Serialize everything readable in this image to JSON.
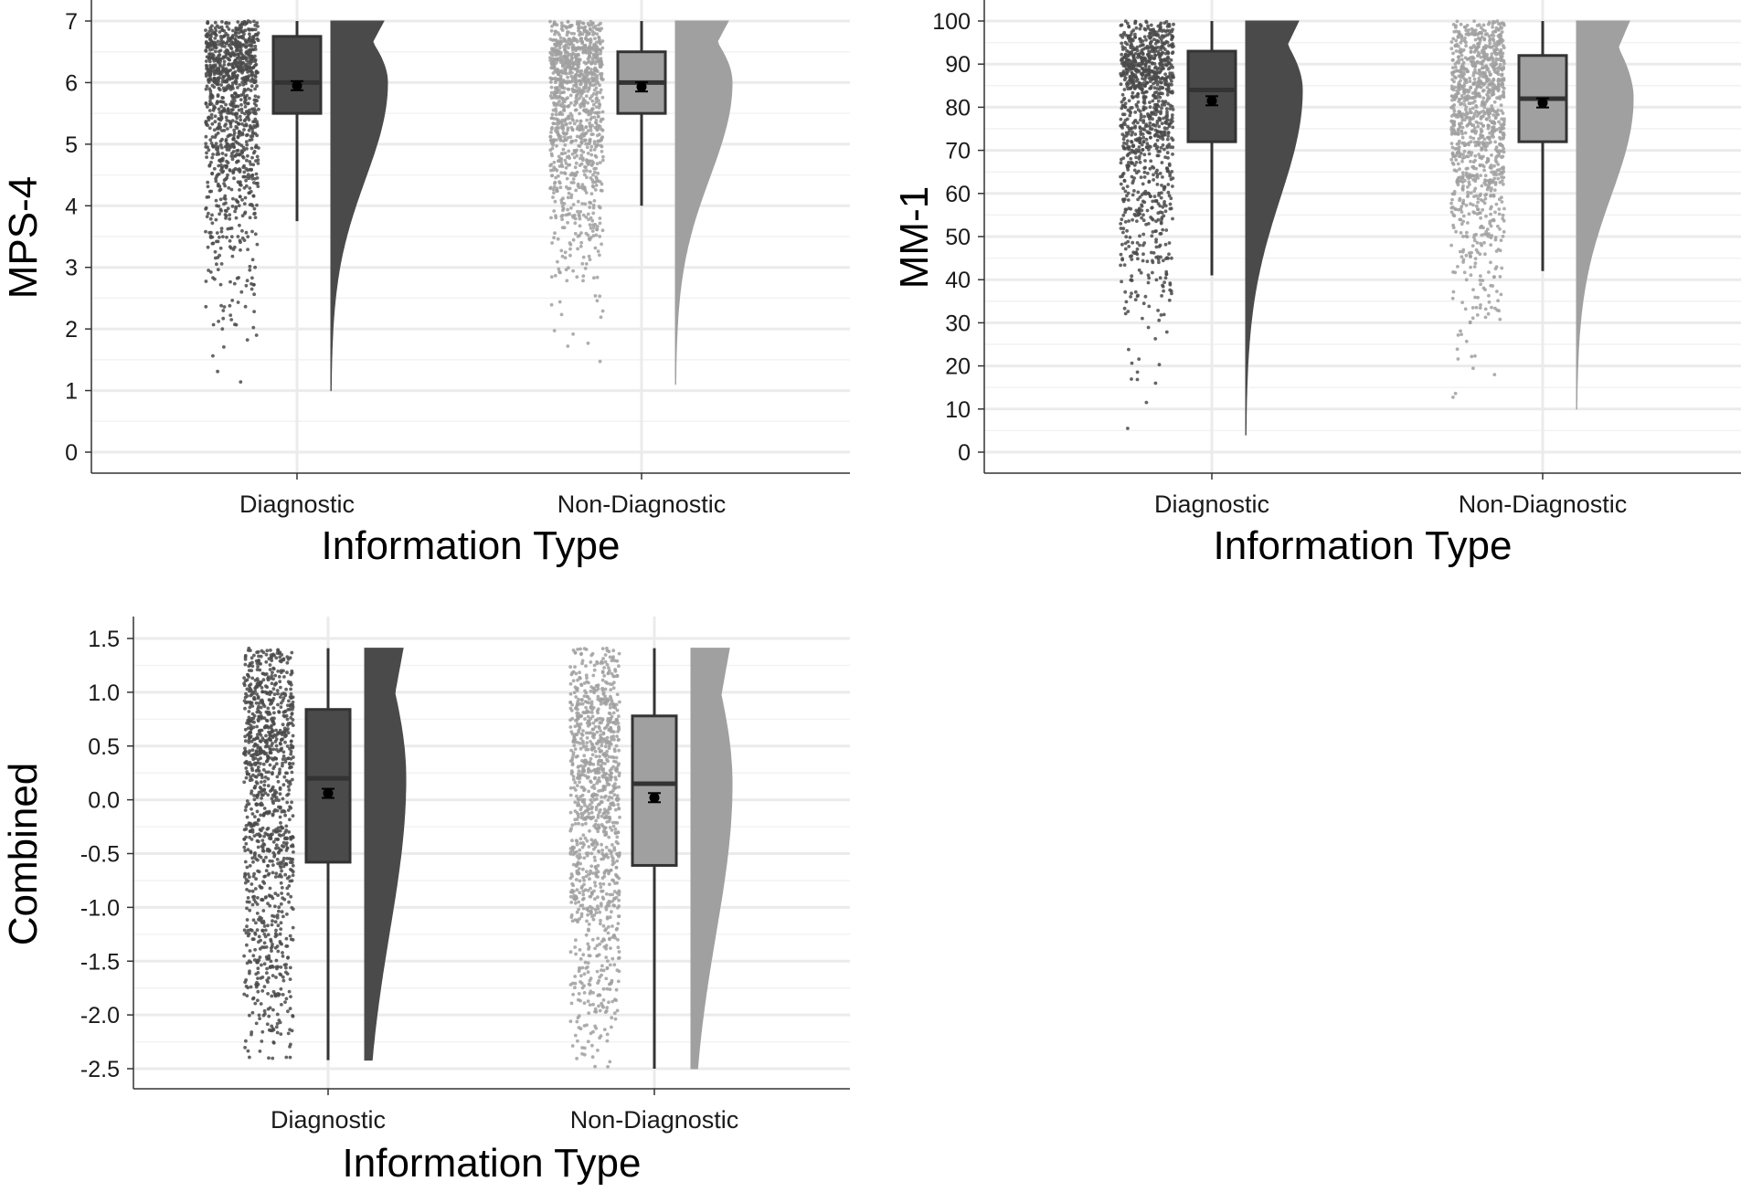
{
  "chart_data": [
    {
      "type": "raincloud",
      "xlabel": "Information Type",
      "ylabel": "MPS-4",
      "categories": [
        "Diagnostic",
        "Non-Diagnostic"
      ],
      "yticks": [
        0,
        1,
        2,
        3,
        4,
        5,
        6,
        7
      ],
      "ylim": [
        -0.3,
        7.1
      ],
      "grid": true,
      "colors": [
        "#4a4a4a",
        "#a0a0a0"
      ],
      "series": [
        {
          "category": "Diagnostic",
          "color": "#4a4a4a",
          "box": {
            "q1": 5.5,
            "median": 6.0,
            "q3": 6.75,
            "whisker_low": 3.75,
            "whisker_high": 7.0
          },
          "mean": 5.95,
          "raw_min": 1.0,
          "raw_max": 7.0
        },
        {
          "category": "Non-Diagnostic",
          "color": "#a0a0a0",
          "box": {
            "q1": 5.5,
            "median": 6.0,
            "q3": 6.5,
            "whisker_low": 4.0,
            "whisker_high": 7.0
          },
          "mean": 5.93,
          "raw_min": 1.1,
          "raw_max": 7.0
        }
      ]
    },
    {
      "type": "raincloud",
      "xlabel": "Information Type",
      "ylabel": "MM-1",
      "categories": [
        "Diagnostic",
        "Non-Diagnostic"
      ],
      "yticks": [
        0,
        10,
        20,
        30,
        40,
        50,
        60,
        70,
        80,
        90,
        100
      ],
      "ylim": [
        -5,
        102
      ],
      "grid": true,
      "colors": [
        "#4a4a4a",
        "#a0a0a0"
      ],
      "series": [
        {
          "category": "Diagnostic",
          "color": "#4a4a4a",
          "box": {
            "q1": 72,
            "median": 84,
            "q3": 93,
            "whisker_low": 41,
            "whisker_high": 100
          },
          "mean": 81.5,
          "raw_min": 4,
          "raw_max": 100
        },
        {
          "category": "Non-Diagnostic",
          "color": "#a0a0a0",
          "box": {
            "q1": 72,
            "median": 82,
            "q3": 92,
            "whisker_low": 42,
            "whisker_high": 100
          },
          "mean": 81,
          "raw_min": 10,
          "raw_max": 100
        }
      ]
    },
    {
      "type": "raincloud",
      "xlabel": "Information Type",
      "ylabel": "Combined",
      "categories": [
        "Diagnostic",
        "Non-Diagnostic"
      ],
      "yticks": [
        "-2.5",
        "-2.0",
        "-1.5",
        "-1.0",
        "-0.5",
        "0.0",
        "0.5",
        "1.0",
        "1.5"
      ],
      "ylim": [
        -2.7,
        1.7
      ],
      "grid": true,
      "colors": [
        "#4a4a4a",
        "#a0a0a0"
      ],
      "series": [
        {
          "category": "Diagnostic",
          "color": "#4a4a4a",
          "box": {
            "q1": -0.58,
            "median": 0.2,
            "q3": 0.84,
            "whisker_low": -2.42,
            "whisker_high": 1.41
          },
          "mean": 0.06,
          "raw_min": -2.42,
          "raw_max": 1.41
        },
        {
          "category": "Non-Diagnostic",
          "color": "#a0a0a0",
          "box": {
            "q1": -0.61,
            "median": 0.15,
            "q3": 0.78,
            "whisker_low": -2.5,
            "whisker_high": 1.41
          },
          "mean": 0.02,
          "raw_min": -2.5,
          "raw_max": 1.41
        }
      ]
    }
  ]
}
